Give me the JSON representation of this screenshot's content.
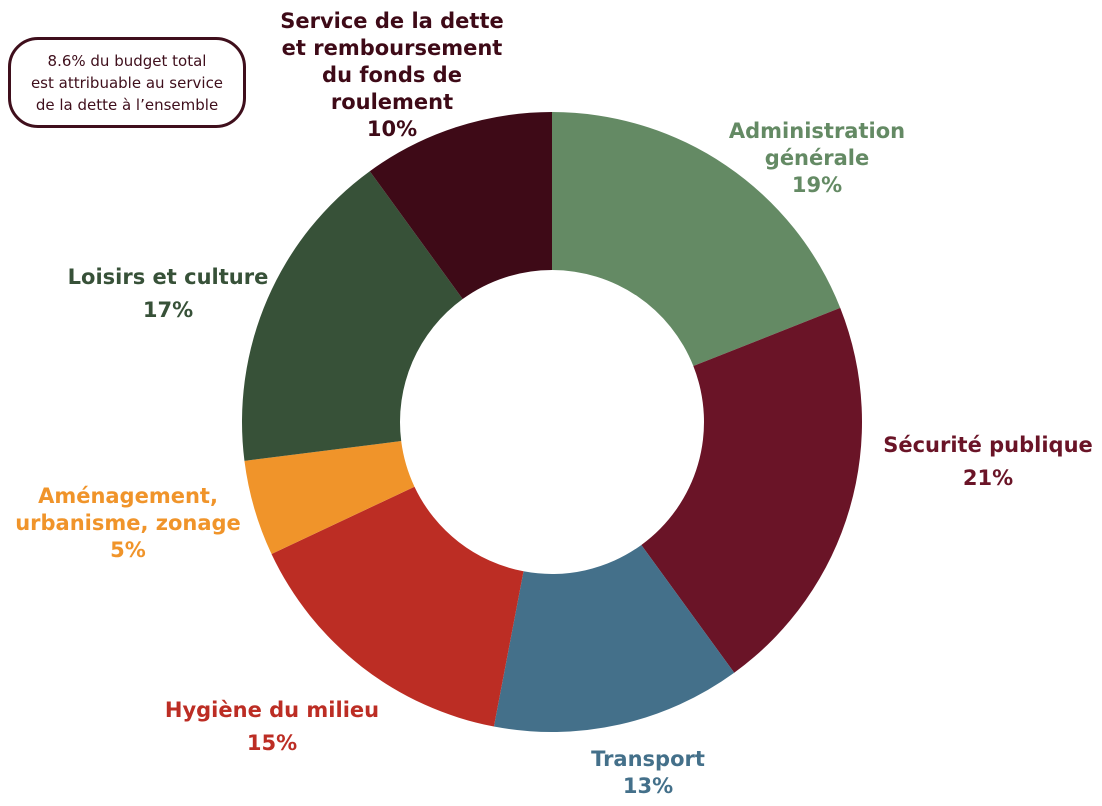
{
  "note": {
    "lines": [
      "8.6% du budget total",
      "est attribuable au service",
      "de la dette à l’ensemble"
    ]
  },
  "chart_data": {
    "type": "pie",
    "variant": "donut",
    "title": "",
    "slices": [
      {
        "label": "Administration générale",
        "value": 19,
        "value_label": "19%",
        "color": "#648a64",
        "label_lines": [
          "Administration",
          "générale"
        ]
      },
      {
        "label": "Sécurité publique",
        "value": 21,
        "value_label": "21%",
        "color": "#6a1427",
        "label_lines": [
          "Sécurité publique"
        ]
      },
      {
        "label": "Transport",
        "value": 13,
        "value_label": "13%",
        "color": "#44708a",
        "label_lines": [
          "Transport"
        ]
      },
      {
        "label": "Hygiène du milieu",
        "value": 15,
        "value_label": "15%",
        "color": "#bc2d24",
        "label_lines": [
          "Hygiène du milieu"
        ]
      },
      {
        "label": "Aménagement, urbanisme, zonage",
        "value": 5,
        "value_label": "5%",
        "color": "#f0942a",
        "label_lines": [
          "Aménagement,",
          "urbanisme, zonage"
        ]
      },
      {
        "label": "Loisirs et culture",
        "value": 17,
        "value_label": "17%",
        "color": "#375138",
        "label_lines": [
          "Loisirs et culture"
        ]
      },
      {
        "label": "Service de la dette et remboursement du fonds de roulement",
        "value": 10,
        "value_label": "10%",
        "color": "#3e0a17",
        "label_lines": [
          "Service de la dette",
          "et remboursement",
          "du fonds de",
          "roulement"
        ]
      }
    ]
  }
}
